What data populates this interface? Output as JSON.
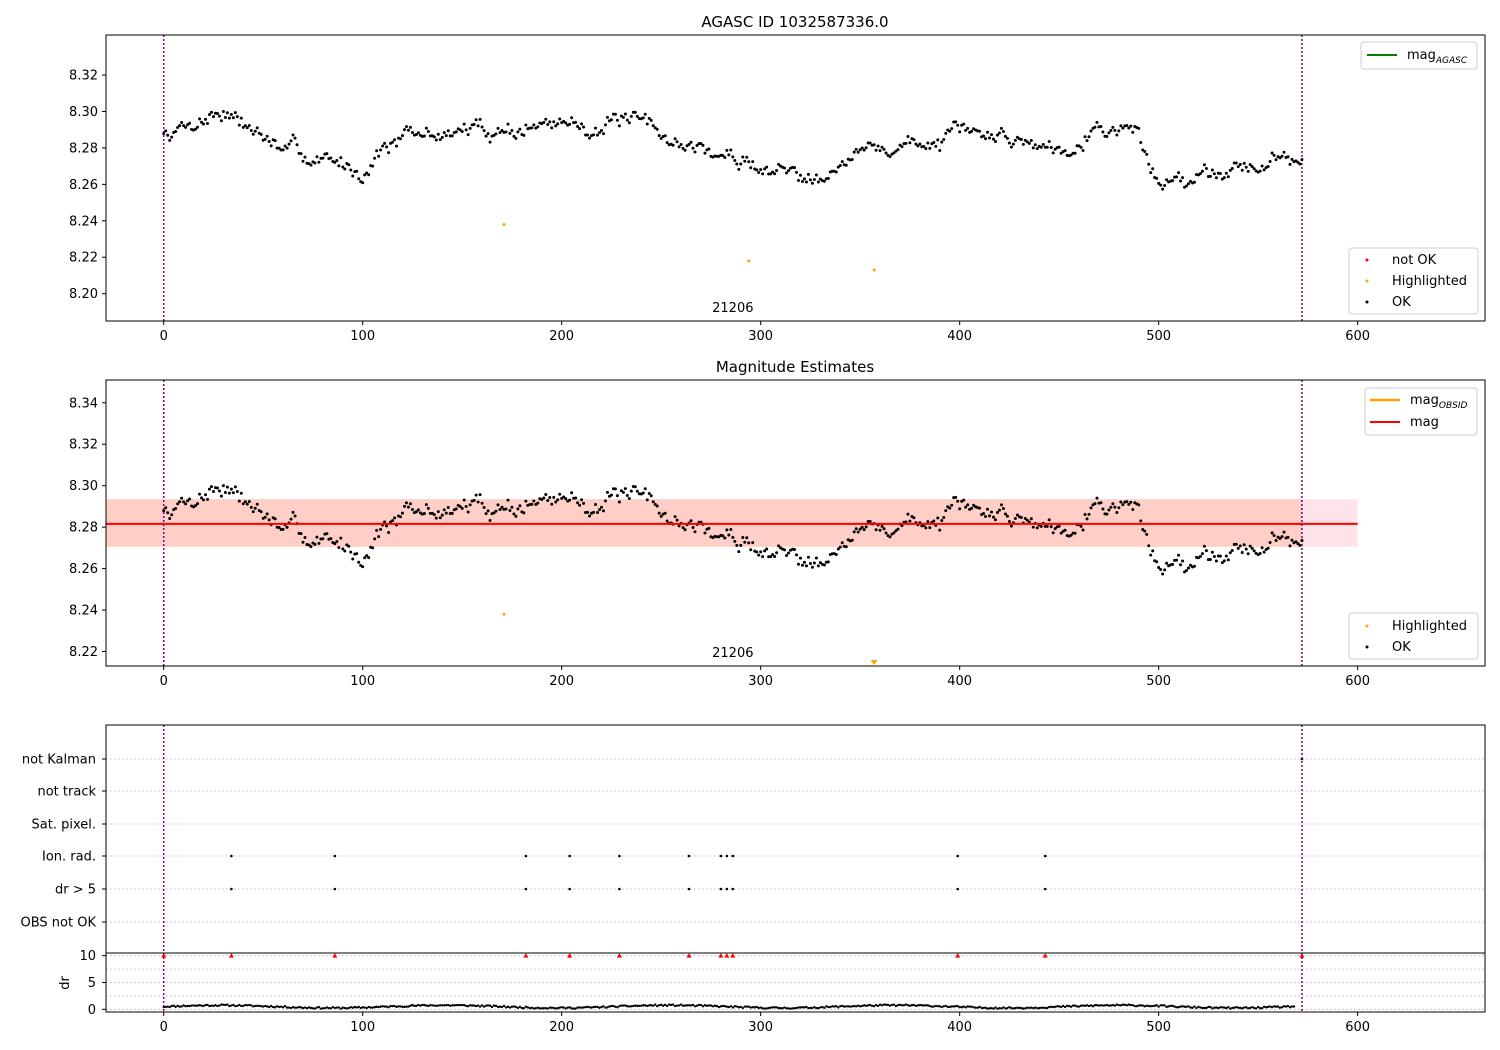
{
  "chart_data": [
    {
      "type": "scatter",
      "title": "AGASC ID 1032587336.0",
      "xlim": [
        -29,
        664
      ],
      "ylim": [
        8.185,
        8.342
      ],
      "x_ticks": [
        0,
        100,
        200,
        300,
        400,
        500,
        600
      ],
      "y_ticks": [
        8.2,
        8.22,
        8.24,
        8.26,
        8.28,
        8.3,
        8.32
      ],
      "y_tick_labels": [
        "8.20",
        "8.22",
        "8.24",
        "8.26",
        "8.28",
        "8.30",
        "8.32"
      ],
      "vlines": [
        0,
        572
      ],
      "obsid_label": {
        "text": "21206",
        "x": 286
      },
      "line_legend": [
        {
          "name": "mag",
          "sub": "AGASC",
          "color": "#008000"
        }
      ],
      "marker_legend": [
        {
          "name": "not OK",
          "color": "#ff0000"
        },
        {
          "name": "Highlighted",
          "color": "#ffa500"
        },
        {
          "name": "OK",
          "color": "#000000"
        }
      ],
      "series": [
        {
          "name": "OK",
          "color": "#000000",
          "n": 572,
          "trend_x": [
            0,
            30,
            60,
            100,
            110,
            150,
            190,
            230,
            260,
            290,
            320,
            350,
            380,
            420,
            450,
            470,
            490,
            500,
            530,
            560,
            572
          ],
          "trend_y": [
            8.288,
            8.302,
            8.278,
            8.268,
            8.283,
            8.289,
            8.292,
            8.294,
            8.283,
            8.272,
            8.266,
            8.277,
            8.283,
            8.287,
            8.281,
            8.294,
            8.288,
            8.259,
            8.27,
            8.273,
            8.28
          ],
          "noise": 0.006
        },
        {
          "name": "Highlighted",
          "color": "#ffa500",
          "x": [
            171,
            294,
            357
          ],
          "y": [
            8.238,
            8.218,
            8.213
          ]
        }
      ]
    },
    {
      "type": "scatter",
      "title": "Magnitude Estimates",
      "xlim": [
        -29,
        664
      ],
      "ylim": [
        8.213,
        8.351
      ],
      "x_ticks": [
        0,
        100,
        200,
        300,
        400,
        500,
        600
      ],
      "y_ticks": [
        8.22,
        8.24,
        8.26,
        8.28,
        8.3,
        8.32,
        8.34
      ],
      "y_tick_labels": [
        "8.22",
        "8.24",
        "8.26",
        "8.28",
        "8.30",
        "8.32",
        "8.34"
      ],
      "vlines": [
        0,
        572
      ],
      "obsid_label": {
        "text": "21206",
        "x": 286
      },
      "mean_line": {
        "y": 8.2816,
        "x0": -29,
        "x1": 600,
        "color": "#ff0000"
      },
      "bands": [
        {
          "x0": -29,
          "x1": 600,
          "y0": 8.2705,
          "y1": 8.2935,
          "color": "#ffc0cb",
          "alpha": 0.45
        },
        {
          "x0": -29,
          "x1": 572,
          "y0": 8.2705,
          "y1": 8.2935,
          "color": "#ffa07a",
          "alpha": 0.3
        }
      ],
      "line_legend": [
        {
          "name": "mag",
          "sub": "OBSID",
          "color": "#ffa500"
        },
        {
          "name": "mag",
          "sub": "",
          "color": "#ff0000"
        }
      ],
      "marker_legend": [
        {
          "name": "Highlighted",
          "color": "#ffa500"
        },
        {
          "name": "OK",
          "color": "#000000"
        }
      ],
      "series": [
        {
          "name": "Highlighted",
          "color": "#ffa500",
          "x": [
            171
          ],
          "y": [
            8.238
          ],
          "offscale_x": [
            357
          ]
        }
      ]
    },
    {
      "type": "scatter",
      "xlim": [
        -29,
        664
      ],
      "x_ticks": [
        0,
        100,
        200,
        300,
        400,
        500,
        600
      ],
      "vlines": [
        0,
        572
      ],
      "flag_rows": [
        "not Kalman",
        "not track",
        "Sat. pixel.",
        "Ion. rad.",
        "dr > 5",
        "OBS not OK"
      ],
      "flags": {
        "Ion. rad.": [
          34,
          86,
          182,
          204,
          229,
          264,
          280,
          283,
          286,
          399,
          443
        ],
        "dr > 5": [
          34,
          86,
          182,
          204,
          229,
          264,
          280,
          283,
          286,
          399,
          443
        ],
        "not Kalman": [
          572
        ]
      },
      "dr_label": "dr",
      "dr_ylim": [
        -0.5,
        10.5
      ],
      "dr_ticks": [
        0,
        5,
        10
      ],
      "dr_spikes_x": [
        0,
        34,
        86,
        182,
        204,
        229,
        264,
        280,
        283,
        286,
        399,
        443,
        572
      ],
      "dr_spike_value": 10
    }
  ]
}
